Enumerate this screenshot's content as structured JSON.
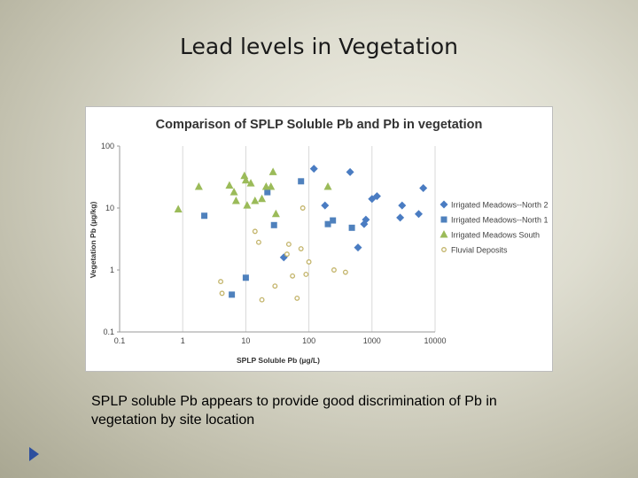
{
  "slide": {
    "title": "Lead levels in Vegetation",
    "caption": "SPLP soluble Pb appears to provide good discrimination of  Pb in vegetation by site location"
  },
  "chart_data": {
    "type": "scatter",
    "title": "Comparison of SPLP Soluble Pb and Pb in vegetation",
    "xlabel": "SPLP Soluble Pb (µg/L)",
    "ylabel": "Vegetation Pb (µg/kg)",
    "x_scale": "log",
    "y_scale": "log",
    "xlim": [
      0.1,
      10000
    ],
    "ylim": [
      0.1,
      100
    ],
    "x_ticks": [
      "0.1",
      "1",
      "10",
      "100",
      "1000",
      "10000"
    ],
    "y_ticks": [
      "0.1",
      "1",
      "10",
      "100"
    ],
    "grid": "vertical",
    "legend_position": "right",
    "series": [
      {
        "name": "Irrigated Meadows--North 2",
        "marker": "diamond",
        "color": "#4a7cc2",
        "points": [
          [
            120,
            43
          ],
          [
            450,
            38
          ],
          [
            180,
            11
          ],
          [
            1000,
            14
          ],
          [
            1200,
            15.5
          ],
          [
            3000,
            11
          ],
          [
            6500,
            21
          ],
          [
            800,
            6.5
          ],
          [
            750,
            5.5
          ],
          [
            2800,
            7
          ],
          [
            5500,
            8
          ],
          [
            600,
            2.3
          ],
          [
            40,
            1.6
          ]
        ]
      },
      {
        "name": "Irrigated Meadows--North 1",
        "marker": "square",
        "color": "#4f81bd",
        "points": [
          [
            75,
            27
          ],
          [
            22,
            18
          ],
          [
            2.2,
            7.5
          ],
          [
            28,
            5.3
          ],
          [
            200,
            5.5
          ],
          [
            240,
            6.3
          ],
          [
            480,
            4.8
          ],
          [
            6,
            0.4
          ],
          [
            10,
            0.75
          ]
        ]
      },
      {
        "name": "Irrigated Meadows South",
        "marker": "triangle",
        "color": "#9bbb59",
        "points": [
          [
            0.85,
            9.5
          ],
          [
            1.8,
            22
          ],
          [
            5.5,
            23
          ],
          [
            6.5,
            18
          ],
          [
            7,
            13
          ],
          [
            9.5,
            33
          ],
          [
            10,
            28
          ],
          [
            10.5,
            11
          ],
          [
            14,
            13
          ],
          [
            18,
            14
          ],
          [
            21,
            22
          ],
          [
            27,
            38
          ],
          [
            25,
            22
          ],
          [
            30,
            8
          ],
          [
            200,
            22
          ],
          [
            12,
            25
          ]
        ]
      },
      {
        "name": "Fluvial Deposits",
        "marker": "circle",
        "color": "#c3b46a",
        "points": [
          [
            4,
            0.65
          ],
          [
            4.2,
            0.42
          ],
          [
            14,
            4.2
          ],
          [
            16,
            2.8
          ],
          [
            18,
            0.33
          ],
          [
            29,
            0.55
          ],
          [
            48,
            2.6
          ],
          [
            45,
            1.8
          ],
          [
            55,
            0.8
          ],
          [
            65,
            0.35
          ],
          [
            75,
            2.2
          ],
          [
            80,
            10
          ],
          [
            90,
            0.85
          ],
          [
            100,
            1.35
          ],
          [
            250,
            1
          ],
          [
            380,
            0.92
          ]
        ]
      }
    ]
  }
}
